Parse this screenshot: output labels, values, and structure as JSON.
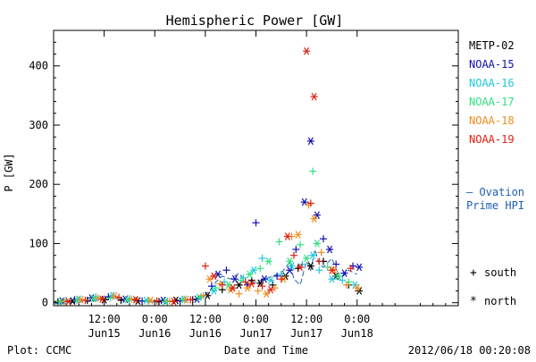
{
  "chart_data": {
    "type": "scatter",
    "title": "Hemispheric Power [GW]",
    "xlabel": "Date and Time",
    "ylabel": "P [GW]",
    "x_unit": "hours",
    "xlim": [
      0,
      96
    ],
    "ylim": [
      -5,
      460
    ],
    "yticks": [
      0,
      100,
      200,
      300,
      400
    ],
    "xticks": [
      {
        "x": 12,
        "top": "12:00",
        "bottom": "Jun15"
      },
      {
        "x": 24,
        "top": "0:00",
        "bottom": "Jun16"
      },
      {
        "x": 36,
        "top": "12:00",
        "bottom": "Jun16"
      },
      {
        "x": 48,
        "top": "0:00",
        "bottom": "Jun17"
      },
      {
        "x": 60,
        "top": "12:00",
        "bottom": "Jun17"
      },
      {
        "x": 72,
        "top": "0:00",
        "bottom": "Jun18"
      }
    ],
    "legend_placement": "right",
    "marker_legend": [
      {
        "marker": "+",
        "label": "south"
      },
      {
        "marker": "*",
        "label": "north"
      }
    ],
    "model_label_lines": [
      "— Ovation",
      "Prime HPI"
    ],
    "model_color": "#1f5fb5",
    "series": [
      {
        "name": "METP-02",
        "color": "#000000",
        "points": [
          [
            1.0,
            2,
            "s"
          ],
          [
            4.5,
            3,
            "n"
          ],
          [
            8.0,
            4,
            "s"
          ],
          [
            12.0,
            5,
            "n"
          ],
          [
            16.0,
            4,
            "s"
          ],
          [
            20.0,
            3,
            "n"
          ],
          [
            25.0,
            2,
            "s"
          ],
          [
            29.0,
            4,
            "n"
          ],
          [
            33.0,
            5,
            "s"
          ],
          [
            36.5,
            12,
            "n"
          ],
          [
            40.0,
            22,
            "s"
          ],
          [
            44.0,
            30,
            "n"
          ],
          [
            47.0,
            38,
            "s"
          ],
          [
            49.0,
            33,
            "n"
          ],
          [
            52.0,
            30,
            "s"
          ],
          [
            55.0,
            45,
            "n"
          ],
          [
            58.0,
            58,
            "s"
          ],
          [
            61.0,
            62,
            "n"
          ],
          [
            64.0,
            70,
            "s"
          ],
          [
            67.0,
            45,
            "n"
          ],
          [
            70.0,
            30,
            "s"
          ],
          [
            72.5,
            20,
            "n"
          ]
        ]
      },
      {
        "name": "NOAA-15",
        "color": "#1010b0",
        "points": [
          [
            2.0,
            3,
            "n"
          ],
          [
            5.0,
            5,
            "s"
          ],
          [
            9.0,
            8,
            "n"
          ],
          [
            13.0,
            10,
            "s"
          ],
          [
            17.0,
            6,
            "n"
          ],
          [
            21.0,
            3,
            "s"
          ],
          [
            26.0,
            4,
            "n"
          ],
          [
            30.0,
            3,
            "s"
          ],
          [
            34.0,
            6,
            "n"
          ],
          [
            37.5,
            28,
            "s"
          ],
          [
            39.0,
            48,
            "n"
          ],
          [
            41.0,
            55,
            "s"
          ],
          [
            43.0,
            40,
            "n"
          ],
          [
            46.0,
            30,
            "s"
          ],
          [
            48.0,
            135,
            "s"
          ],
          [
            50.0,
            40,
            "n"
          ],
          [
            53.0,
            45,
            "s"
          ],
          [
            56.0,
            55,
            "n"
          ],
          [
            57.5,
            90,
            "s"
          ],
          [
            59.5,
            170,
            "n"
          ],
          [
            61.0,
            273,
            "n"
          ],
          [
            62.5,
            148,
            "n"
          ],
          [
            64.0,
            108,
            "s"
          ],
          [
            65.5,
            90,
            "n"
          ],
          [
            67.0,
            65,
            "s"
          ],
          [
            69.0,
            50,
            "n"
          ],
          [
            71.0,
            62,
            "s"
          ],
          [
            72.5,
            60,
            "n"
          ]
        ]
      },
      {
        "name": "NOAA-16",
        "color": "#20c8e0",
        "points": [
          [
            3.0,
            4,
            "s"
          ],
          [
            6.0,
            6,
            "n"
          ],
          [
            10.0,
            10,
            "s"
          ],
          [
            14.0,
            12,
            "n"
          ],
          [
            18.0,
            7,
            "s"
          ],
          [
            22.0,
            4,
            "n"
          ],
          [
            27.0,
            3,
            "s"
          ],
          [
            31.0,
            6,
            "n"
          ],
          [
            35.0,
            10,
            "s"
          ],
          [
            38.0,
            20,
            "n"
          ],
          [
            40.5,
            35,
            "s"
          ],
          [
            42.5,
            25,
            "n"
          ],
          [
            45.0,
            42,
            "s"
          ],
          [
            47.5,
            55,
            "n"
          ],
          [
            49.5,
            75,
            "s"
          ],
          [
            51.5,
            38,
            "n"
          ],
          [
            54.0,
            48,
            "s"
          ],
          [
            56.5,
            62,
            "n"
          ],
          [
            59.0,
            65,
            "s"
          ],
          [
            61.5,
            80,
            "n"
          ],
          [
            63.0,
            55,
            "s"
          ],
          [
            66.0,
            40,
            "n"
          ],
          [
            68.5,
            38,
            "s"
          ],
          [
            71.5,
            30,
            "n"
          ]
        ]
      },
      {
        "name": "NOAA-17",
        "color": "#30e080",
        "points": [
          [
            1.5,
            2,
            "n"
          ],
          [
            5.5,
            4,
            "s"
          ],
          [
            9.5,
            7,
            "n"
          ],
          [
            13.5,
            8,
            "s"
          ],
          [
            17.5,
            5,
            "n"
          ],
          [
            22.5,
            3,
            "s"
          ],
          [
            26.5,
            2,
            "n"
          ],
          [
            30.5,
            5,
            "s"
          ],
          [
            34.5,
            9,
            "n"
          ],
          [
            38.5,
            25,
            "s"
          ],
          [
            41.5,
            30,
            "n"
          ],
          [
            44.5,
            38,
            "s"
          ],
          [
            46.5,
            48,
            "n"
          ],
          [
            49.0,
            58,
            "s"
          ],
          [
            51.0,
            70,
            "n"
          ],
          [
            53.5,
            103,
            "s"
          ],
          [
            56.0,
            70,
            "n"
          ],
          [
            58.5,
            98,
            "s"
          ],
          [
            60.0,
            75,
            "n"
          ],
          [
            61.5,
            222,
            "s"
          ],
          [
            62.5,
            100,
            "n"
          ],
          [
            65.0,
            60,
            "s"
          ],
          [
            67.5,
            45,
            "n"
          ],
          [
            70.0,
            35,
            "s"
          ]
        ]
      },
      {
        "name": "NOAA-18",
        "color": "#f08c20",
        "points": [
          [
            2.5,
            3,
            "s"
          ],
          [
            6.5,
            5,
            "n"
          ],
          [
            10.5,
            8,
            "s"
          ],
          [
            14.5,
            11,
            "n"
          ],
          [
            18.5,
            6,
            "s"
          ],
          [
            23.0,
            4,
            "n"
          ],
          [
            27.5,
            3,
            "s"
          ],
          [
            31.5,
            5,
            "n"
          ],
          [
            35.5,
            12,
            "s"
          ],
          [
            37.0,
            40,
            "n"
          ],
          [
            39.5,
            32,
            "s"
          ],
          [
            42.0,
            22,
            "n"
          ],
          [
            44.0,
            15,
            "s"
          ],
          [
            46.0,
            25,
            "n"
          ],
          [
            48.5,
            20,
            "s"
          ],
          [
            50.5,
            15,
            "n"
          ],
          [
            52.5,
            25,
            "s"
          ],
          [
            54.5,
            40,
            "n"
          ],
          [
            56.5,
            112,
            "s"
          ],
          [
            58.0,
            115,
            "n"
          ],
          [
            60.5,
            165,
            "s"
          ],
          [
            61.8,
            142,
            "n"
          ],
          [
            63.5,
            85,
            "s"
          ],
          [
            66.5,
            55,
            "n"
          ],
          [
            69.5,
            30,
            "s"
          ],
          [
            72.0,
            25,
            "n"
          ]
        ]
      },
      {
        "name": "NOAA-19",
        "color": "#e02010",
        "points": [
          [
            3.5,
            2,
            "n"
          ],
          [
            7.5,
            4,
            "s"
          ],
          [
            11.5,
            6,
            "n"
          ],
          [
            15.5,
            9,
            "s"
          ],
          [
            19.5,
            5,
            "n"
          ],
          [
            24.5,
            3,
            "s"
          ],
          [
            28.5,
            2,
            "n"
          ],
          [
            32.5,
            5,
            "s"
          ],
          [
            36.0,
            62,
            "s"
          ],
          [
            38.0,
            45,
            "n"
          ],
          [
            40.0,
            30,
            "s"
          ],
          [
            42.5,
            25,
            "n"
          ],
          [
            45.5,
            35,
            "s"
          ],
          [
            47.0,
            32,
            "n"
          ],
          [
            49.5,
            28,
            "s"
          ],
          [
            51.5,
            22,
            "n"
          ],
          [
            54.0,
            40,
            "s"
          ],
          [
            55.5,
            112,
            "n"
          ],
          [
            57.0,
            80,
            "s"
          ],
          [
            58.5,
            60,
            "n"
          ],
          [
            60.0,
            425,
            "n"
          ],
          [
            61.0,
            168,
            "s"
          ],
          [
            61.8,
            348,
            "n"
          ],
          [
            63.0,
            70,
            "s"
          ],
          [
            66.0,
            55,
            "n"
          ],
          [
            70.5,
            58,
            "s"
          ]
        ]
      }
    ],
    "model_points": [
      [
        0,
        -2
      ],
      [
        4,
        0
      ],
      [
        8,
        2
      ],
      [
        12,
        6
      ],
      [
        14,
        10
      ],
      [
        16,
        5
      ],
      [
        20,
        3
      ],
      [
        24,
        1
      ],
      [
        28,
        2
      ],
      [
        32,
        4
      ],
      [
        35,
        8
      ],
      [
        37,
        20
      ],
      [
        38.5,
        35
      ],
      [
        40,
        45
      ],
      [
        42,
        40
      ],
      [
        44,
        50
      ],
      [
        46,
        30
      ],
      [
        48,
        35
      ],
      [
        50,
        40
      ],
      [
        52,
        45
      ],
      [
        54,
        50
      ],
      [
        56,
        68
      ],
      [
        57,
        40
      ],
      [
        58.5,
        30
      ],
      [
        60,
        70
      ],
      [
        61,
        55
      ],
      [
        62,
        90
      ],
      [
        63,
        65
      ],
      [
        64,
        60
      ],
      [
        66,
        75
      ],
      [
        68,
        40
      ],
      [
        70,
        55
      ],
      [
        72,
        48
      ]
    ]
  },
  "footer": {
    "left": "Plot: CCMC",
    "center": "Date and Time",
    "right": "2012/06/18 00:20:08"
  }
}
